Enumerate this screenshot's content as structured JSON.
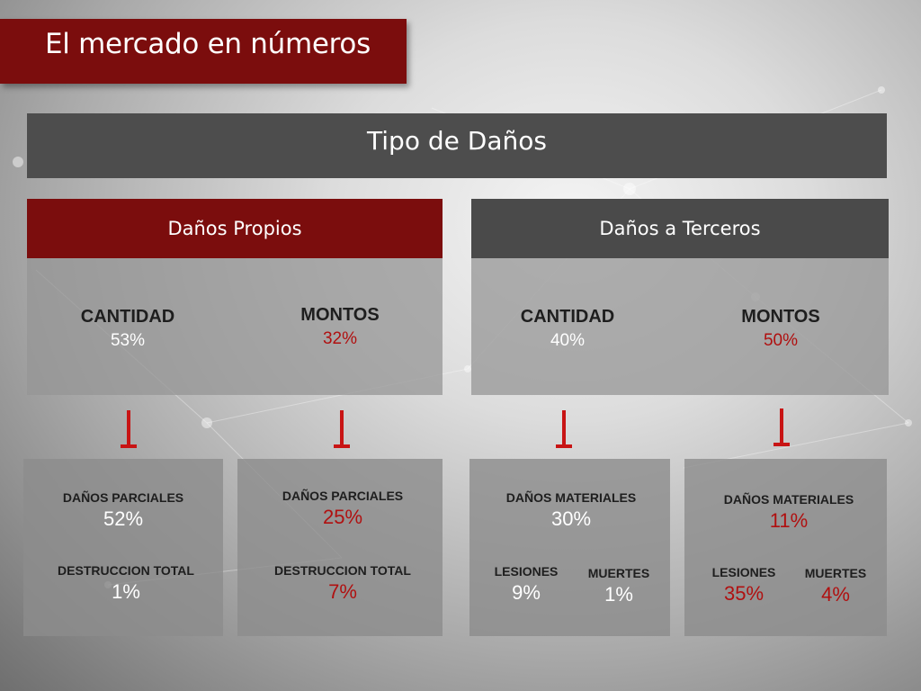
{
  "header": {
    "title": "El mercado en números"
  },
  "section": {
    "title": "Tipo de Daños"
  },
  "groups": [
    {
      "title": "Daños Propios",
      "metrics": [
        {
          "label": "CANTIDAD",
          "value": "53%"
        },
        {
          "label": "MONTOS",
          "value": "32%"
        }
      ]
    },
    {
      "title": "Daños a Terceros",
      "metrics": [
        {
          "label": "CANTIDAD",
          "value": "40%"
        },
        {
          "label": "MONTOS",
          "value": "50%"
        }
      ]
    }
  ],
  "details": [
    {
      "items": [
        {
          "label": "DAÑOS PARCIALES",
          "value": "52%"
        },
        {
          "label": "DESTRUCCION TOTAL",
          "value": "1%"
        }
      ]
    },
    {
      "items": [
        {
          "label": "DAÑOS PARCIALES",
          "value": "25%"
        },
        {
          "label": "DESTRUCCION TOTAL",
          "value": "7%"
        }
      ]
    },
    {
      "items": [
        {
          "label": "DAÑOS  MATERIALES",
          "value": "30%"
        },
        {
          "label": "LESIONES",
          "value": "9%"
        },
        {
          "label": "MUERTES",
          "value": "1%"
        }
      ]
    },
    {
      "items": [
        {
          "label": "DAÑOS  MATERIALES",
          "value": "11%"
        },
        {
          "label": "LESIONES",
          "value": "35%"
        },
        {
          "label": "MUERTES",
          "value": "4%"
        }
      ]
    }
  ],
  "colors": {
    "brand_red": "#7b0d0d",
    "value_red": "#b01010",
    "dark_gray": "#4a4a4a",
    "arrow_red": "#c81414"
  },
  "icons": [
    "arrow-down-icon"
  ]
}
